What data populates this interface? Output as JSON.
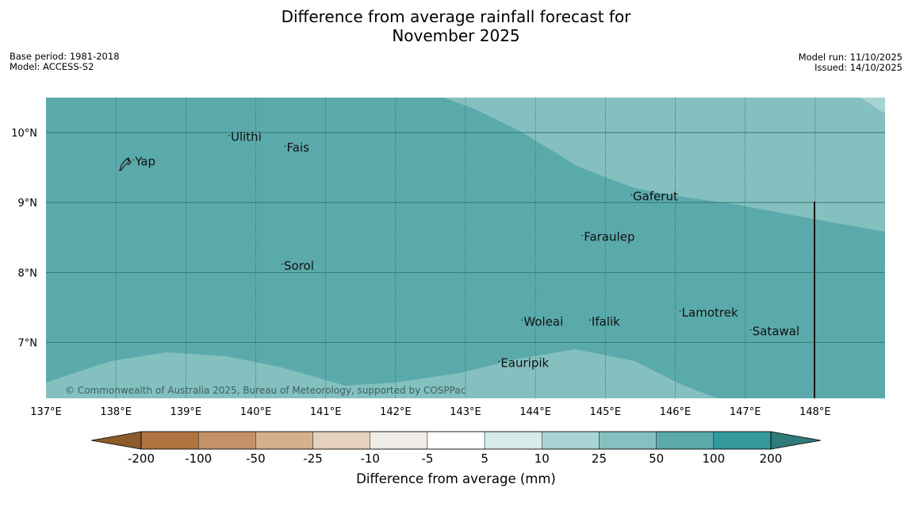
{
  "title": {
    "line1": "Difference from average rainfall forecast for",
    "line2": "November 2025"
  },
  "meta_left": {
    "base_period": "Base period: 1981-2018",
    "model": "Model: ACCESS-S2"
  },
  "meta_right": {
    "model_run": "Model run: 11/10/2025",
    "issued": "Issued: 14/10/2025"
  },
  "map": {
    "lon_range": [
      137,
      149
    ],
    "lat_range": [
      6.2,
      10.5
    ],
    "lon_ticks": [
      137,
      138,
      139,
      140,
      141,
      142,
      143,
      144,
      145,
      146,
      147,
      148
    ],
    "lon_tick_labels": [
      "137°E",
      "138°E",
      "139°E",
      "140°E",
      "141°E",
      "142°E",
      "143°E",
      "144°E",
      "145°E",
      "146°E",
      "147°E",
      "148°E"
    ],
    "lat_ticks": [
      7,
      8,
      9,
      10
    ],
    "lat_tick_labels": [
      "7°N",
      "8°N",
      "9°N",
      "10°N"
    ],
    "places": [
      {
        "name": "Yap",
        "lon": 138.25,
        "lat": 9.53
      },
      {
        "name": "Ulithi",
        "lon": 139.62,
        "lat": 9.88
      },
      {
        "name": "Fais",
        "lon": 140.42,
        "lat": 9.73
      },
      {
        "name": "Gaferut",
        "lon": 145.37,
        "lat": 9.03
      },
      {
        "name": "Faraulep",
        "lon": 144.67,
        "lat": 8.45
      },
      {
        "name": "Sorol",
        "lon": 140.38,
        "lat": 8.04
      },
      {
        "name": "Lamotrek",
        "lon": 146.07,
        "lat": 7.37
      },
      {
        "name": "Satawal",
        "lon": 147.08,
        "lat": 7.1
      },
      {
        "name": "Woleai",
        "lon": 143.81,
        "lat": 7.24
      },
      {
        "name": "Ifalik",
        "lon": 144.78,
        "lat": 7.24
      },
      {
        "name": "Eauripik",
        "lon": 143.48,
        "lat": 6.65
      }
    ],
    "copyright": "© Commonwealth of Australia 2025, Bureau of Meteorology, supported by COSPPac"
  },
  "colors": {
    "background_50_100": "#5BAAAB",
    "band_25_50": "#84C0BF",
    "band_10_25": "#A6D3D2",
    "grid": "#2E6E6F",
    "land": "#1a1a1a"
  },
  "legend": {
    "title": "Difference from average (mm)",
    "tick_labels": [
      "-200",
      "-100",
      "-50",
      "-25",
      "-10",
      "-5",
      "5",
      "10",
      "25",
      "50",
      "100",
      "200"
    ],
    "colors": [
      "#8C5A2B",
      "#B07440",
      "#C39166",
      "#D5B08E",
      "#E5D1BE",
      "#F0ECE7",
      "#FFFFFF",
      "#D6EBEA",
      "#A9D4D4",
      "#84C0BF",
      "#5BAAAB",
      "#33999A",
      "#2F7A7A"
    ]
  }
}
